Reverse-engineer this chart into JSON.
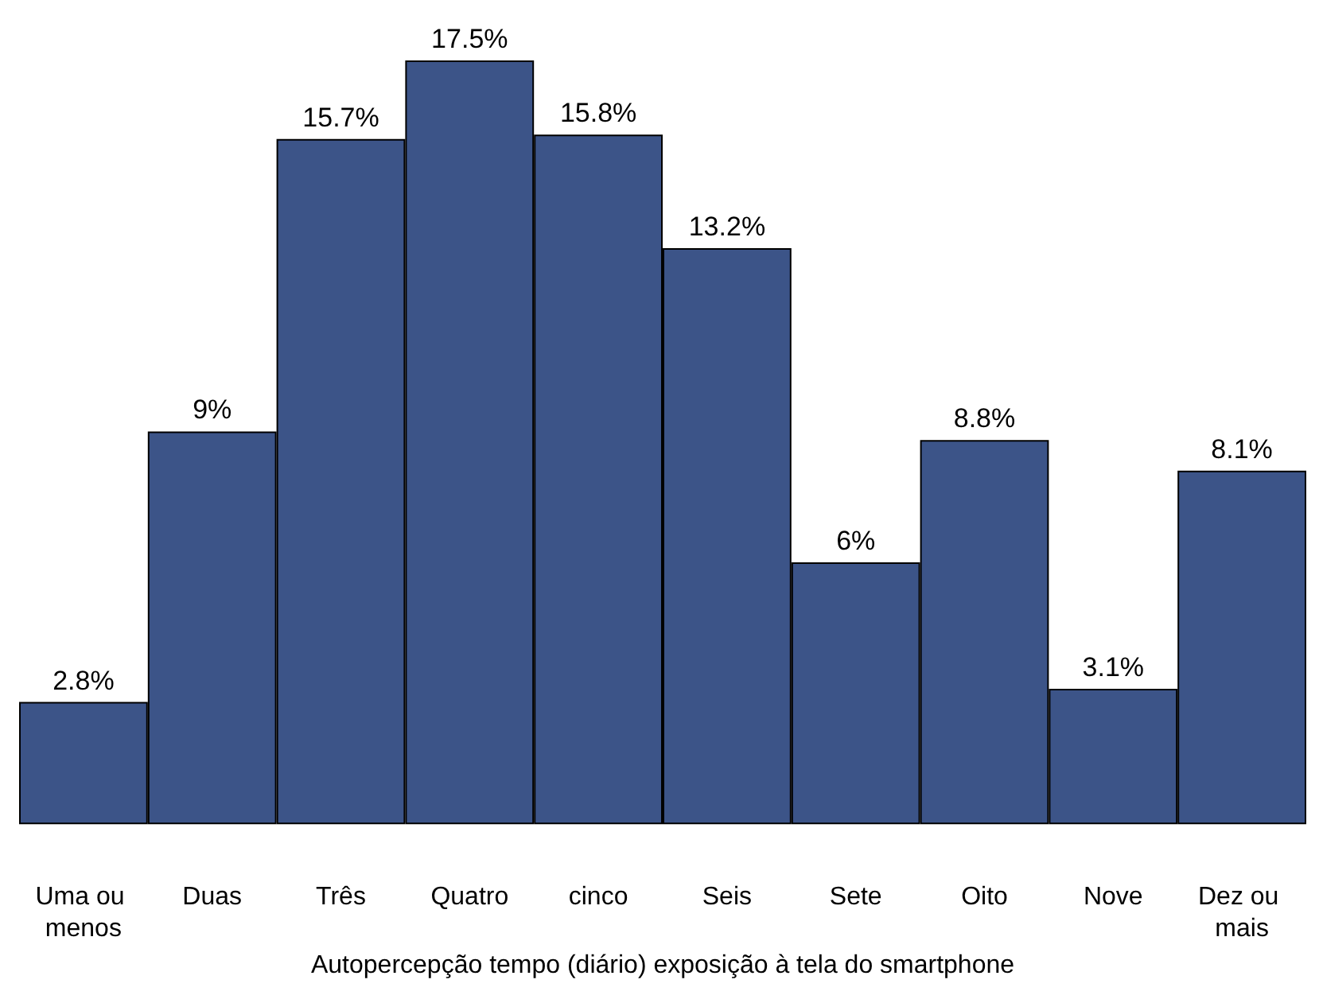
{
  "chart_data": {
    "type": "bar",
    "xlabel": "Autopercepção tempo (diário) exposição à tela do smartphone",
    "categories": [
      "Uma ou menos",
      "Duas",
      "Três",
      "Quatro",
      "cinco",
      "Seis",
      "Sete",
      "Oito",
      "Nove",
      "Dez ou mais"
    ],
    "values": [
      2.8,
      9,
      15.7,
      17.5,
      15.8,
      13.2,
      6,
      8.8,
      3.1,
      8.1
    ],
    "value_labels": [
      "2.8%",
      "9%",
      "15.7%",
      "17.5%",
      "15.8%",
      "13.2%",
      "6%",
      "8.8%",
      "3.1%",
      "8.1%"
    ],
    "color": "#3c5488"
  }
}
